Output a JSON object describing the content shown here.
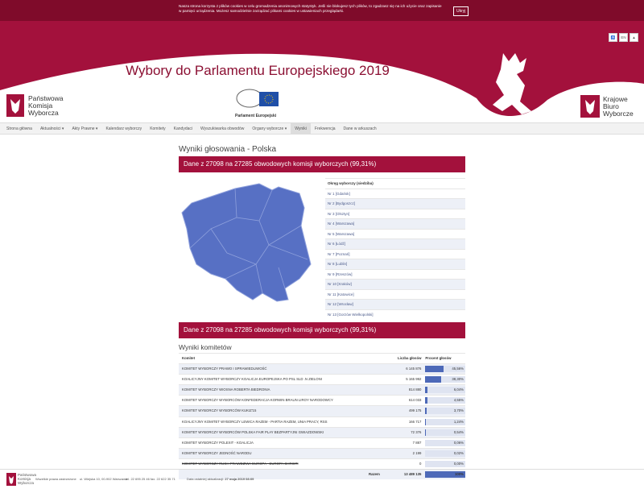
{
  "cookie_bar": {
    "text": "Nasza strona korzysta z plików cookies w celu gromadzenia anonimowych statystyk. Jeśli nie blokujesz tych plików, to zgadzasz się na ich użycie oraz zapisanie w pamięci urządzenia. Możesz samodzielnie zarządzać plikami cookies w ustawieniach przeglądarki.",
    "button": "Ukryj"
  },
  "header": {
    "lang": "EN",
    "title": "Wybory do Parlamentu Europejskiego 2019",
    "pkw_logo": [
      "Państwowa",
      "Komisja",
      "Wyborcza"
    ],
    "ep_logo": "Parlament Europejski",
    "kbw_logo": [
      "Krajowe",
      "Biuro",
      "Wyborcze"
    ]
  },
  "nav": [
    {
      "label": "Strona główna"
    },
    {
      "label": "Aktualności",
      "dropdown": true
    },
    {
      "label": "Akty Prawne",
      "dropdown": true
    },
    {
      "label": "Kalendarz wyborczy"
    },
    {
      "label": "Komitety"
    },
    {
      "label": "Kandydaci"
    },
    {
      "label": "Wyszukiwarka obwodów"
    },
    {
      "label": "Organy wyborcze",
      "dropdown": true
    },
    {
      "label": "Wyniki",
      "active": true
    },
    {
      "label": "Frekwencja"
    },
    {
      "label": "Dane w arkuszach"
    }
  ],
  "content": {
    "title": "Wyniki głosowania - Polska",
    "status": "Dane z 27098 na 27285 obwodowych komisji wyborczych (99,31%)",
    "districts_header": "Okręg wyborczy (siedziba)",
    "districts": [
      "Nr 1 [Gdańsk]",
      "Nr 2 [Bydgoszcz]",
      "Nr 3 [Olsztyn]",
      "Nr 4 [Warszawa]",
      "Nr 5 [Warszawa]",
      "Nr 6 [Łódź]",
      "Nr 7 [Poznań]",
      "Nr 8 [Lublin]",
      "Nr 9 [Rzeszów]",
      "Nr 10 [Kraków]",
      "Nr 11 [Katowice]",
      "Nr 12 [Wrocław]",
      "Nr 13 [Gorzów Wielkopolski]"
    ]
  },
  "results": {
    "title": "Wyniki komitetów",
    "columns": [
      "Komitet",
      "Liczba głosów",
      "Procent głosów"
    ],
    "rows": [
      {
        "committee": "KOMITET WYBORCZY PRAWO I SPRAWIEDLIWOŚĆ",
        "votes": "6 145 876",
        "percent": {
          "value": 45.56,
          "label": "45,56%"
        }
      },
      {
        "committee": "KOALICYJNY KOMITET WYBORCZY KOALICJA EUROPEJSKA PO PSL SLD .N ZIELONI",
        "votes": "5 165 992",
        "percent": {
          "value": 38.3,
          "label": "38,30%"
        }
      },
      {
        "committee": "KOMITET WYBORCZY WIOSNA ROBERTA BIEDRONIA",
        "votes": "814 880",
        "percent": {
          "value": 6.04,
          "label": "6,04%"
        }
      },
      {
        "committee": "KOMITET WYBORCZY WYBORCÓW KONFEDERACJA KORWIN BRAUN LIROY NARODOWCY",
        "votes": "614 033",
        "percent": {
          "value": 4.55,
          "label": "4,55%"
        }
      },
      {
        "committee": "KOMITET WYBORCZY WYBORCÓW KUKIZ'15",
        "votes": "499 175",
        "percent": {
          "value": 3.7,
          "label": "3,70%"
        }
      },
      {
        "committee": "KOALICYJNY KOMITET WYBORCZY LEWICA RAZEM - PARTIA RAZEM, UNIA PRACY, RSS",
        "votes": "166 717",
        "percent": {
          "value": 1.24,
          "label": "1,24%"
        }
      },
      {
        "committee": "KOMITET WYBORCZY WYBORCÓW POLSKA FAIR PLAY BEZPARTYJNI GWIAZDOWSKI",
        "votes": "72 376",
        "percent": {
          "value": 0.54,
          "label": "0,54%"
        }
      },
      {
        "committee": "KOMITET WYBORCZY POLEXIT - KOALICJA",
        "votes": "7 887",
        "percent": {
          "value": 0.06,
          "label": "0,06%"
        }
      },
      {
        "committee": "KOMITET WYBORCZY JEDNOŚĆ NARODU",
        "votes": "2 199",
        "percent": {
          "value": 0.02,
          "label": "0,02%"
        }
      },
      {
        "committee": "KOMITET WYBORCZY RUCH PRAWDZIWA EUROPA - EUROPA CHRISTI",
        "votes": "0",
        "percent": {
          "value": 0,
          "label": "0,00%"
        },
        "withdrawn": true
      }
    ],
    "total": {
      "label": "Razem",
      "votes": "13 489 135",
      "percent": {
        "value": 100,
        "label": "100%"
      }
    }
  },
  "footer": {
    "logo": [
      "Państwowa",
      "Komisja",
      "Wyborcza"
    ],
    "rights": "Wszelkie prawa zastrzeżone",
    "address": "ul. Wiejska 10, 00-902 Warszawa",
    "phone": "tel. 22 695 25 46 fax. 22 622 35 71",
    "updated_label": "Data ostatniej aktualizacji:",
    "updated": "27 maja 2019 08:09"
  }
}
